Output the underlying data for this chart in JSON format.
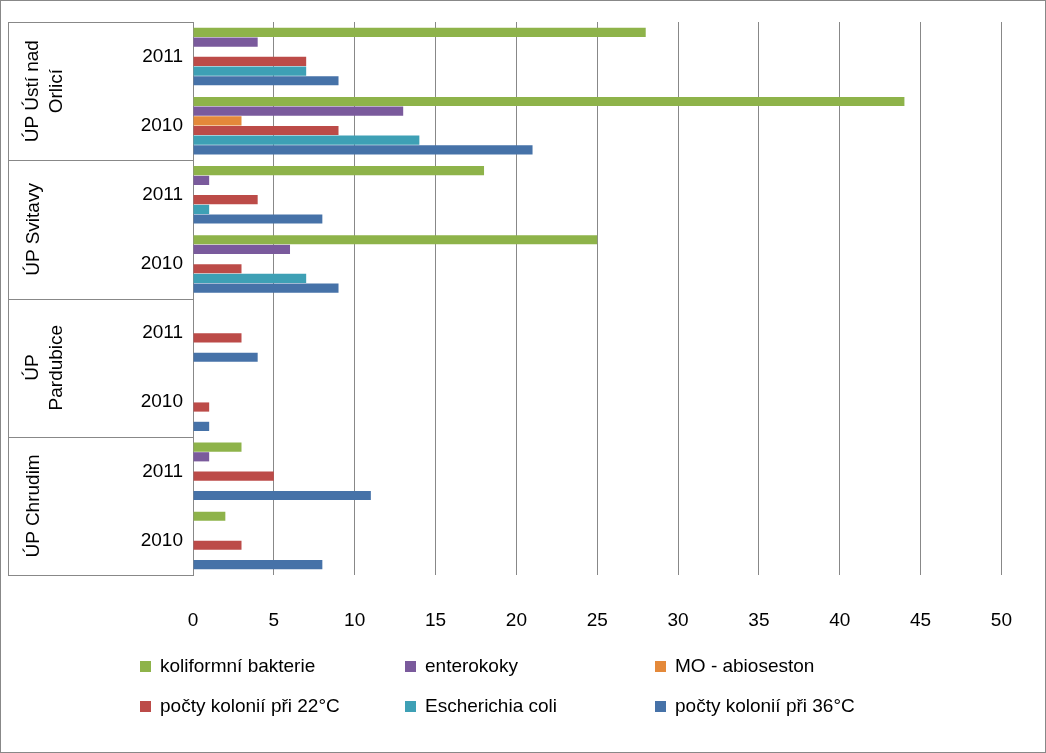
{
  "chart_data": {
    "type": "bar",
    "orientation": "horizontal",
    "categories": [
      "2011",
      "2010",
      "2011",
      "2010",
      "2011",
      "2010",
      "2011",
      "2010"
    ],
    "annotations": [
      "ÚP Ústí nad Orlicí",
      "ÚP Svitavy",
      "ÚP Pardubice",
      "ÚP Chrudim"
    ],
    "series": [
      {
        "name": "koliformní bakterie",
        "color": "#8eb34a",
        "values": [
          28,
          44,
          18,
          25,
          null,
          null,
          3,
          2
        ]
      },
      {
        "name": "enterokoky",
        "color": "#7a5a9c",
        "values": [
          4,
          13,
          1,
          6,
          null,
          null,
          1,
          null
        ]
      },
      {
        "name": "MO - abioseston",
        "color": "#e4893a",
        "values": [
          null,
          3,
          null,
          null,
          null,
          null,
          null,
          null
        ]
      },
      {
        "name": "počty kolonií při 22°C",
        "color": "#bc4b48",
        "values": [
          7,
          9,
          4,
          3,
          3,
          1,
          5,
          3
        ]
      },
      {
        "name": "Escherichia coli",
        "color": "#3ea0b5",
        "values": [
          7,
          14,
          1,
          7,
          null,
          null,
          null,
          null
        ]
      },
      {
        "name": "počty kolonií při 36°C",
        "color": "#4672a8",
        "values": [
          9,
          21,
          8,
          9,
          4,
          1,
          11,
          8
        ]
      }
    ],
    "xlim": [
      0,
      50
    ],
    "xticks": [
      0,
      5,
      10,
      15,
      20,
      25,
      30,
      35,
      40,
      45,
      50
    ],
    "grid": "x",
    "legend": "bottom"
  }
}
